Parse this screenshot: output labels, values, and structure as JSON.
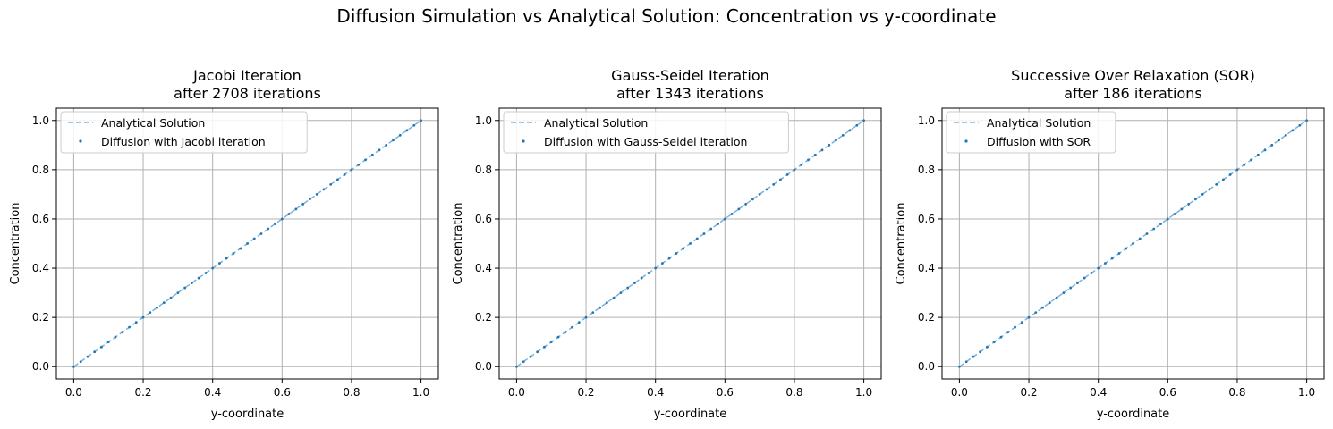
{
  "figure": {
    "title": "Diffusion Simulation vs Analytical Solution: Concentration vs y-coordinate"
  },
  "colors": {
    "analytical": "#7fb2d9",
    "simulation": "#1f77b4",
    "grid": "#b0b0b0"
  },
  "chart_data": [
    {
      "type": "line",
      "title_line1": "Jacobi Iteration",
      "title_line2": "after 2708 iterations",
      "xlabel": "y-coordinate",
      "ylabel": "Concentration",
      "xlim": [
        -0.05,
        1.05
      ],
      "ylim": [
        -0.05,
        1.05
      ],
      "xticks": [
        "0.0",
        "0.2",
        "0.4",
        "0.6",
        "0.8",
        "1.0"
      ],
      "yticks": [
        "0.0",
        "0.2",
        "0.4",
        "0.6",
        "0.8",
        "1.0"
      ],
      "grid": true,
      "legend": "upper-left",
      "series": [
        {
          "name": "Analytical Solution",
          "style": "dashed-line",
          "x": [
            0.0,
            1.0
          ],
          "y": [
            0.0,
            1.0
          ]
        },
        {
          "name": "Diffusion with Jacobi iteration",
          "style": "scatter",
          "x": [
            0.0,
            0.02,
            0.04,
            0.06,
            0.08,
            0.1,
            0.12,
            0.14,
            0.16,
            0.18,
            0.2,
            0.22,
            0.24,
            0.26,
            0.28,
            0.3,
            0.32,
            0.34,
            0.36,
            0.38,
            0.4,
            0.42,
            0.44,
            0.46,
            0.48,
            0.5,
            0.52,
            0.54,
            0.56,
            0.58,
            0.6,
            0.62,
            0.64,
            0.66,
            0.68,
            0.7,
            0.72,
            0.74,
            0.76,
            0.78,
            0.8,
            0.82,
            0.84,
            0.86,
            0.88,
            0.9,
            0.92,
            0.94,
            0.96,
            0.98,
            1.0
          ],
          "y": [
            0.0,
            0.02,
            0.04,
            0.06,
            0.08,
            0.1,
            0.12,
            0.14,
            0.16,
            0.18,
            0.2,
            0.22,
            0.24,
            0.26,
            0.28,
            0.3,
            0.32,
            0.34,
            0.36,
            0.38,
            0.4,
            0.42,
            0.44,
            0.46,
            0.48,
            0.5,
            0.52,
            0.54,
            0.56,
            0.58,
            0.6,
            0.62,
            0.64,
            0.66,
            0.68,
            0.7,
            0.72,
            0.74,
            0.76,
            0.78,
            0.8,
            0.82,
            0.84,
            0.86,
            0.88,
            0.9,
            0.92,
            0.94,
            0.96,
            0.98,
            1.0
          ]
        }
      ]
    },
    {
      "type": "line",
      "title_line1": "Gauss-Seidel Iteration",
      "title_line2": "after 1343 iterations",
      "xlabel": "y-coordinate",
      "ylabel": "Concentration",
      "xlim": [
        -0.05,
        1.05
      ],
      "ylim": [
        -0.05,
        1.05
      ],
      "xticks": [
        "0.0",
        "0.2",
        "0.4",
        "0.6",
        "0.8",
        "1.0"
      ],
      "yticks": [
        "0.0",
        "0.2",
        "0.4",
        "0.6",
        "0.8",
        "1.0"
      ],
      "grid": true,
      "legend": "upper-left",
      "series": [
        {
          "name": "Analytical Solution",
          "style": "dashed-line",
          "x": [
            0.0,
            1.0
          ],
          "y": [
            0.0,
            1.0
          ]
        },
        {
          "name": "Diffusion with Gauss-Seidel iteration",
          "style": "scatter",
          "x": [
            0.0,
            0.02,
            0.04,
            0.06,
            0.08,
            0.1,
            0.12,
            0.14,
            0.16,
            0.18,
            0.2,
            0.22,
            0.24,
            0.26,
            0.28,
            0.3,
            0.32,
            0.34,
            0.36,
            0.38,
            0.4,
            0.42,
            0.44,
            0.46,
            0.48,
            0.5,
            0.52,
            0.54,
            0.56,
            0.58,
            0.6,
            0.62,
            0.64,
            0.66,
            0.68,
            0.7,
            0.72,
            0.74,
            0.76,
            0.78,
            0.8,
            0.82,
            0.84,
            0.86,
            0.88,
            0.9,
            0.92,
            0.94,
            0.96,
            0.98,
            1.0
          ],
          "y": [
            0.0,
            0.02,
            0.04,
            0.06,
            0.08,
            0.1,
            0.12,
            0.14,
            0.16,
            0.18,
            0.2,
            0.22,
            0.24,
            0.26,
            0.28,
            0.3,
            0.32,
            0.34,
            0.36,
            0.38,
            0.4,
            0.42,
            0.44,
            0.46,
            0.48,
            0.5,
            0.52,
            0.54,
            0.56,
            0.58,
            0.6,
            0.62,
            0.64,
            0.66,
            0.68,
            0.7,
            0.72,
            0.74,
            0.76,
            0.78,
            0.8,
            0.82,
            0.84,
            0.86,
            0.88,
            0.9,
            0.92,
            0.94,
            0.96,
            0.98,
            1.0
          ]
        }
      ]
    },
    {
      "type": "line",
      "title_line1": "Successive Over Relaxation (SOR)",
      "title_line2": "after 186 iterations",
      "xlabel": "y-coordinate",
      "ylabel": "Concentration",
      "xlim": [
        -0.05,
        1.05
      ],
      "ylim": [
        -0.05,
        1.05
      ],
      "xticks": [
        "0.0",
        "0.2",
        "0.4",
        "0.6",
        "0.8",
        "1.0"
      ],
      "yticks": [
        "0.0",
        "0.2",
        "0.4",
        "0.6",
        "0.8",
        "1.0"
      ],
      "grid": true,
      "legend": "upper-left",
      "series": [
        {
          "name": "Analytical Solution",
          "style": "dashed-line",
          "x": [
            0.0,
            1.0
          ],
          "y": [
            0.0,
            1.0
          ]
        },
        {
          "name": "Diffusion with SOR",
          "style": "scatter",
          "x": [
            0.0,
            0.02,
            0.04,
            0.06,
            0.08,
            0.1,
            0.12,
            0.14,
            0.16,
            0.18,
            0.2,
            0.22,
            0.24,
            0.26,
            0.28,
            0.3,
            0.32,
            0.34,
            0.36,
            0.38,
            0.4,
            0.42,
            0.44,
            0.46,
            0.48,
            0.5,
            0.52,
            0.54,
            0.56,
            0.58,
            0.6,
            0.62,
            0.64,
            0.66,
            0.68,
            0.7,
            0.72,
            0.74,
            0.76,
            0.78,
            0.8,
            0.82,
            0.84,
            0.86,
            0.88,
            0.9,
            0.92,
            0.94,
            0.96,
            0.98,
            1.0
          ],
          "y": [
            0.0,
            0.02,
            0.04,
            0.06,
            0.08,
            0.1,
            0.12,
            0.14,
            0.16,
            0.18,
            0.2,
            0.22,
            0.24,
            0.26,
            0.28,
            0.3,
            0.32,
            0.34,
            0.36,
            0.38,
            0.4,
            0.42,
            0.44,
            0.46,
            0.48,
            0.5,
            0.52,
            0.54,
            0.56,
            0.58,
            0.6,
            0.62,
            0.64,
            0.66,
            0.68,
            0.7,
            0.72,
            0.74,
            0.76,
            0.78,
            0.8,
            0.82,
            0.84,
            0.86,
            0.88,
            0.9,
            0.92,
            0.94,
            0.96,
            0.98,
            1.0
          ]
        }
      ]
    }
  ]
}
